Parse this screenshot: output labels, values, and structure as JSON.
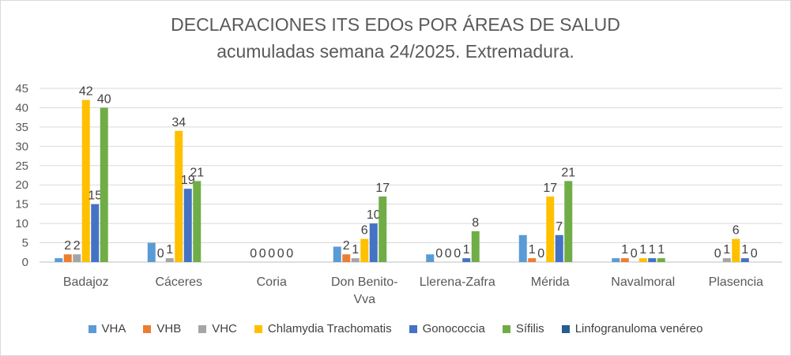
{
  "chart_data": {
    "type": "bar",
    "title": "DECLARACIONES ITS EDOs POR ÁREAS DE SALUD",
    "subtitle": "acumuladas semana 24/2025. Extremadura.",
    "xlabel": "",
    "ylabel": "",
    "ylim": [
      0,
      45
    ],
    "yticks": [
      0,
      5,
      10,
      15,
      20,
      25,
      30,
      35,
      40,
      45
    ],
    "grid": true,
    "legend_position": "bottom",
    "categories": [
      "Badajoz",
      "Cáceres",
      "Coria",
      "Don Benito-Vva",
      "Llerena-Zafra",
      "Mérida",
      "Navalmoral",
      "Plasencia"
    ],
    "category_lines": [
      [
        "Badajoz"
      ],
      [
        "Cáceres"
      ],
      [
        "Coria"
      ],
      [
        "Don Benito-",
        "Vva"
      ],
      [
        "Llerena-Zafra"
      ],
      [
        "Mérida"
      ],
      [
        "Navalmoral"
      ],
      [
        "Plasencia"
      ]
    ],
    "series": [
      {
        "name": "VHA",
        "color": "#5b9bd5",
        "values": [
          1,
          5,
          0,
          4,
          2,
          7,
          1,
          0
        ],
        "labels": [
          null,
          null,
          null,
          null,
          null,
          null,
          null,
          null
        ]
      },
      {
        "name": "VHB",
        "color": "#ed7d31",
        "values": [
          2,
          0,
          0,
          2,
          0,
          1,
          1,
          0
        ],
        "labels": [
          "2",
          "0",
          "0",
          "2",
          "0",
          "1",
          "1",
          "0"
        ]
      },
      {
        "name": "VHC",
        "color": "#a5a5a5",
        "values": [
          2,
          1,
          0,
          1,
          0,
          0,
          0,
          1
        ],
        "labels": [
          "2",
          "1",
          "0",
          "1",
          "0",
          "0",
          "0",
          "1"
        ]
      },
      {
        "name": "Chlamydia Trachomatis",
        "color": "#ffc000",
        "values": [
          42,
          34,
          0,
          6,
          0,
          17,
          1,
          6
        ],
        "labels": [
          "42",
          "34",
          "0",
          "6",
          "0",
          "17",
          "1",
          "6"
        ]
      },
      {
        "name": "Gonococcia",
        "color": "#4472c4",
        "values": [
          15,
          19,
          0,
          10,
          1,
          7,
          1,
          1
        ],
        "labels": [
          "15",
          "19",
          "0",
          "10",
          "1",
          "7",
          "1",
          "1"
        ]
      },
      {
        "name": "Sífilis",
        "color": "#70ad47",
        "values": [
          40,
          21,
          0,
          17,
          8,
          21,
          1,
          0
        ],
        "labels": [
          "40",
          "21",
          "0",
          "17",
          "8",
          "21",
          "1",
          "0"
        ]
      },
      {
        "name": "Linfogranuloma venéreo",
        "color": "#255e91",
        "values": [
          0,
          0,
          0,
          0,
          0,
          0,
          0,
          0
        ],
        "labels": [
          null,
          null,
          null,
          null,
          null,
          null,
          null,
          null
        ]
      }
    ]
  }
}
